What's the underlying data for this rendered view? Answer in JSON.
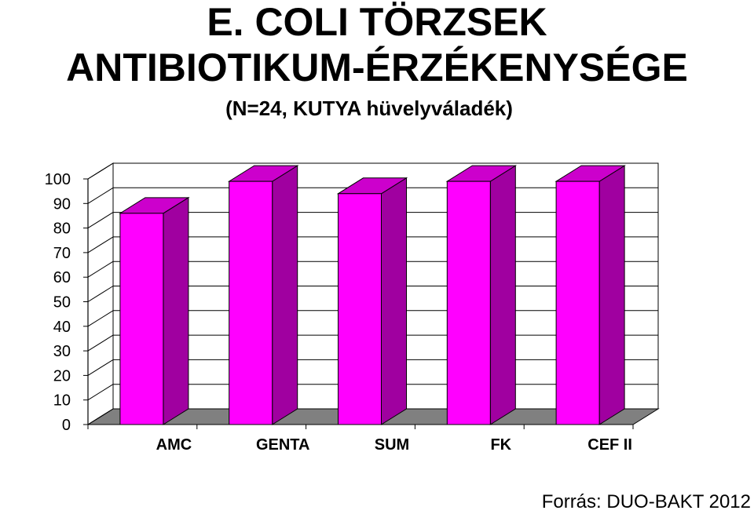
{
  "title_line1": "E. COLI TÖRZSEK",
  "title_line2": "ANTIBIOTIKUM-ÉRZÉKENYSÉGE",
  "subtitle": "(N=24, KUTYA hüvelyváladék)",
  "source": "Forrás: DUO-BAKT 2012",
  "chart_data": {
    "type": "bar",
    "categories": [
      "AMC",
      "GENTA",
      "SUM",
      "FK",
      "CEF II"
    ],
    "values": [
      86,
      99,
      94,
      99,
      99
    ],
    "ylim": [
      0,
      100
    ],
    "yticks": [
      0,
      10,
      20,
      30,
      40,
      50,
      60,
      70,
      80,
      90,
      100
    ],
    "grid": true,
    "legend": "none",
    "colors": {
      "bar_front": "#FF00FF",
      "bar_side": "#A000A0",
      "bar_top": "#CC00CC",
      "floor": "#808080"
    }
  }
}
